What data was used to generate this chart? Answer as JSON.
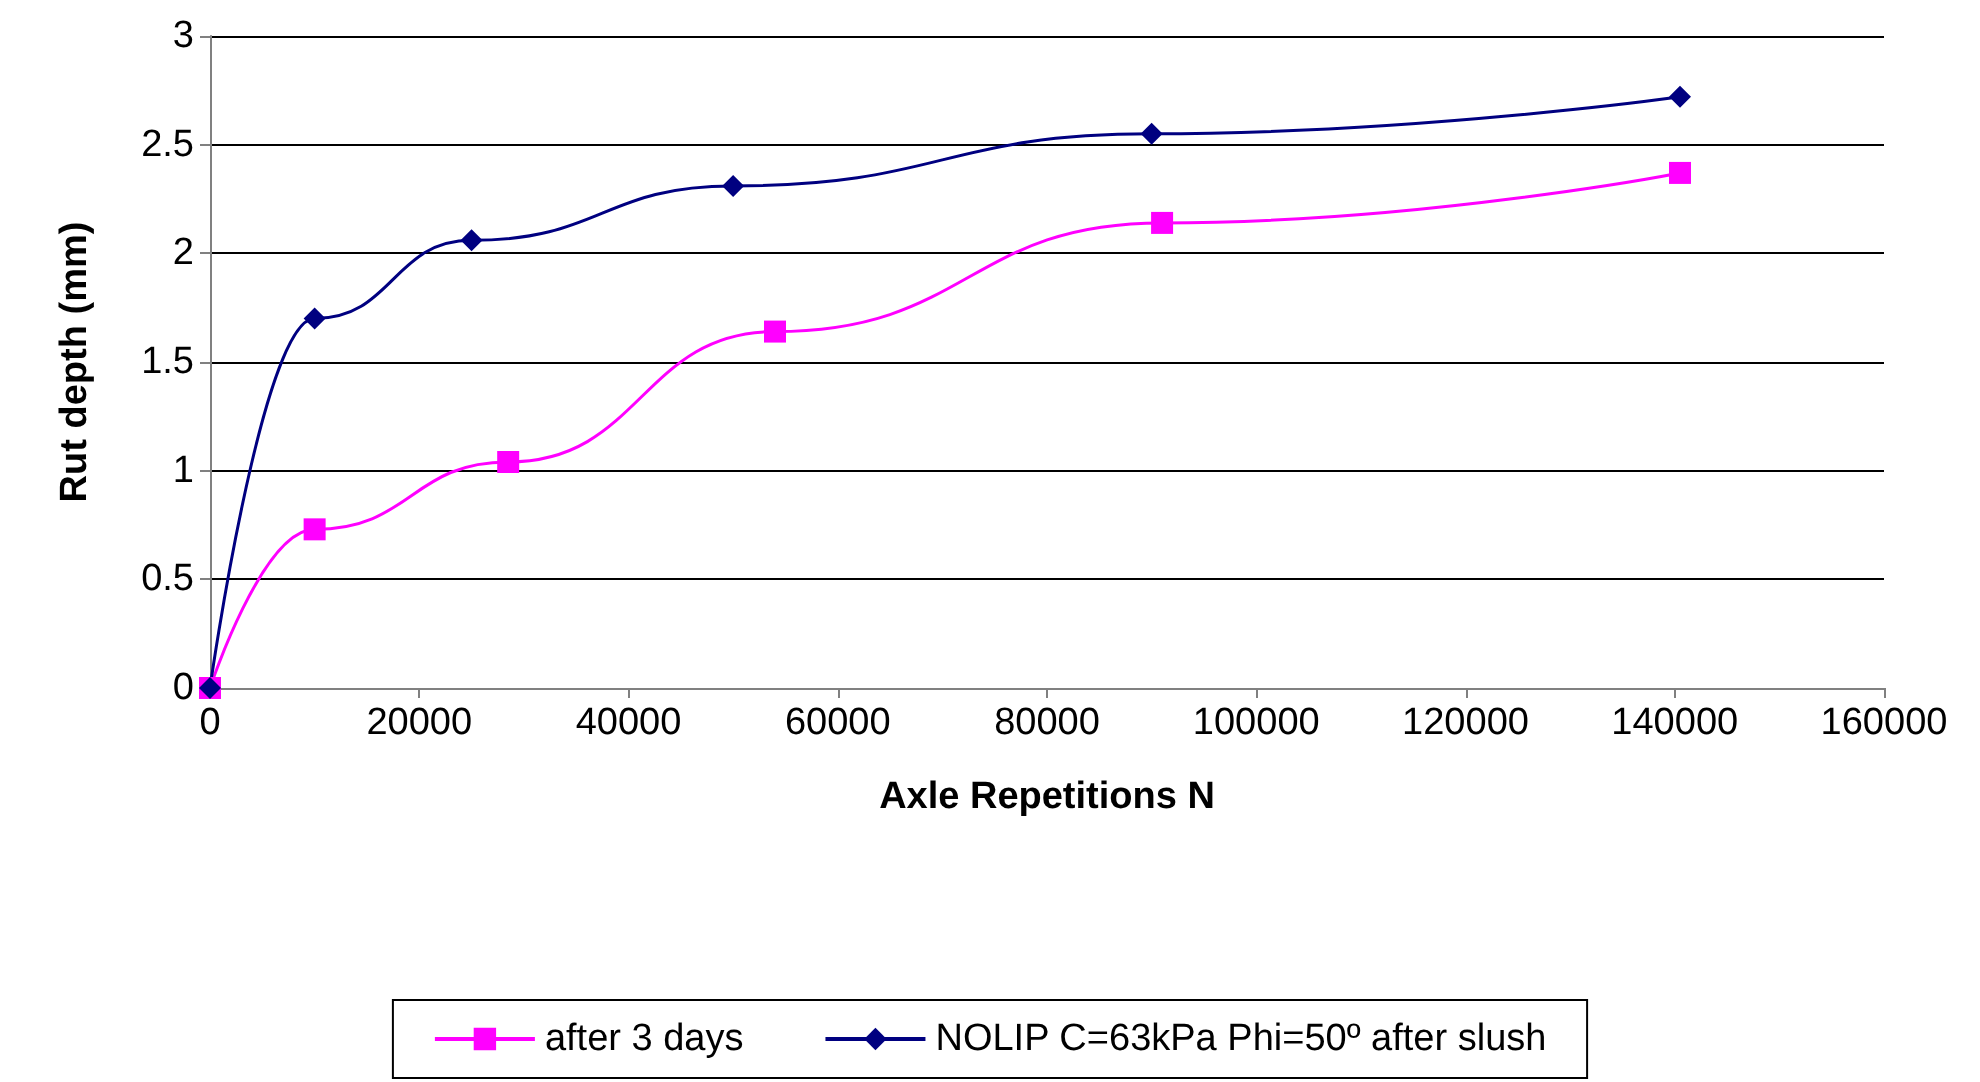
{
  "chart_data": {
    "type": "line",
    "xlabel": "Axle Repetitions N",
    "ylabel": "Rut depth (mm)",
    "xlim": [
      0,
      160000
    ],
    "xticks": [
      0,
      20000,
      40000,
      60000,
      80000,
      100000,
      120000,
      140000,
      160000
    ],
    "ylim": [
      0,
      3
    ],
    "yticks": [
      0,
      0.5,
      1,
      1.5,
      2,
      2.5,
      3
    ],
    "grid": "y",
    "legend": "bottom",
    "series": [
      {
        "name": "after 3 days",
        "color": "#ff00ff",
        "marker": "square",
        "x": [
          0,
          10000,
          28500,
          54000,
          91000,
          140500
        ],
        "values": [
          0,
          0.73,
          1.04,
          1.64,
          2.14,
          2.37
        ]
      },
      {
        "name": "NOLIP C=63kPa Phi=50º after slush",
        "color": "#000080",
        "marker": "diamond",
        "x": [
          0,
          10000,
          25000,
          50000,
          90000,
          140500
        ],
        "values": [
          0,
          1.7,
          2.06,
          2.31,
          2.55,
          2.72
        ]
      }
    ]
  }
}
